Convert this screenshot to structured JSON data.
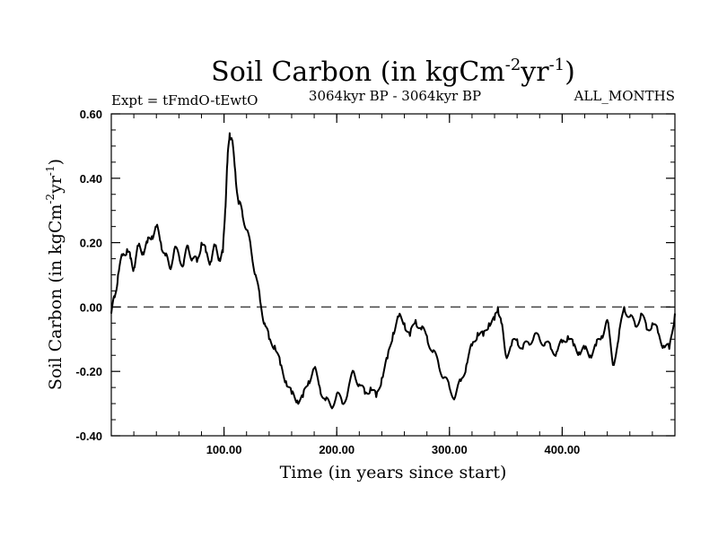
{
  "chart_data": {
    "type": "line",
    "title_main": "Soil Carbon (in kgCm",
    "title_exp1": "-2",
    "title_mid": "yr",
    "title_exp2": "-1",
    "title_close": ")",
    "subtitle_left": "Expt = tFmdO-tEwtO",
    "subtitle_center": "3064kyr BP - 3064kyr BP",
    "subtitle_right": "ALL_MONTHS",
    "xlabel": "Time (in years since start)",
    "ylabel": "Soil Carbon (in kgCm-2yr-1)",
    "ylabel_main": "Soil Carbon (in kgCm",
    "ylabel_exp1": "-2",
    "ylabel_mid": "yr",
    "ylabel_exp2": "-1",
    "ylabel_close": ")",
    "xlim": [
      0,
      500
    ],
    "ylim": [
      -0.4,
      0.6
    ],
    "x_ticks": [
      100,
      200,
      300,
      400
    ],
    "x_tick_labels": [
      "100.00",
      "200.00",
      "300.00",
      "400.00"
    ],
    "y_ticks": [
      -0.4,
      -0.2,
      0.0,
      0.2,
      0.4,
      0.6
    ],
    "y_tick_labels": [
      "-0.40",
      "-0.20",
      "0.00",
      "0.20",
      "0.40",
      "0.60"
    ],
    "reference_line": 0.0,
    "series": [
      {
        "name": "Soil Carbon",
        "x": [
          0,
          3,
          6,
          10,
          14,
          17,
          20,
          24,
          28,
          32,
          36,
          40,
          44,
          48,
          52,
          56,
          60,
          64,
          68,
          72,
          76,
          80,
          84,
          88,
          92,
          96,
          99,
          101,
          103,
          105,
          107,
          110,
          113,
          116,
          120,
          124,
          128,
          132,
          136,
          140,
          145,
          150,
          155,
          160,
          165,
          170,
          175,
          180,
          185,
          190,
          195,
          200,
          205,
          210,
          215,
          220,
          225,
          230,
          235,
          240,
          245,
          250,
          255,
          260,
          265,
          270,
          275,
          280,
          285,
          290,
          295,
          300,
          305,
          310,
          315,
          320,
          325,
          330,
          335,
          340,
          343,
          346,
          350,
          355,
          360,
          365,
          370,
          375,
          380,
          385,
          390,
          395,
          400,
          405,
          410,
          415,
          420,
          425,
          430,
          435,
          440,
          445,
          450,
          455,
          460,
          465,
          470,
          475,
          480,
          485,
          490,
          495,
          500
        ],
        "values": [
          -0.02,
          0.03,
          0.1,
          0.16,
          0.18,
          0.15,
          0.12,
          0.19,
          0.17,
          0.2,
          0.22,
          0.25,
          0.2,
          0.16,
          0.12,
          0.18,
          0.16,
          0.13,
          0.19,
          0.15,
          0.14,
          0.2,
          0.17,
          0.14,
          0.19,
          0.15,
          0.17,
          0.3,
          0.45,
          0.54,
          0.52,
          0.42,
          0.32,
          0.3,
          0.24,
          0.18,
          0.1,
          0.02,
          -0.05,
          -0.1,
          -0.12,
          -0.18,
          -0.23,
          -0.27,
          -0.29,
          -0.28,
          -0.23,
          -0.19,
          -0.25,
          -0.29,
          -0.31,
          -0.27,
          -0.3,
          -0.26,
          -0.2,
          -0.24,
          -0.27,
          -0.25,
          -0.28,
          -0.22,
          -0.16,
          -0.08,
          -0.03,
          -0.05,
          -0.09,
          -0.04,
          -0.07,
          -0.09,
          -0.14,
          -0.17,
          -0.22,
          -0.25,
          -0.28,
          -0.23,
          -0.18,
          -0.12,
          -0.08,
          -0.09,
          -0.05,
          -0.04,
          0.0,
          -0.05,
          -0.15,
          -0.12,
          -0.1,
          -0.13,
          -0.11,
          -0.09,
          -0.1,
          -0.11,
          -0.13,
          -0.14,
          -0.11,
          -0.09,
          -0.12,
          -0.14,
          -0.13,
          -0.15,
          -0.12,
          -0.09,
          -0.04,
          -0.18,
          -0.1,
          0.0,
          -0.03,
          -0.06,
          -0.02,
          -0.07,
          -0.05,
          -0.08,
          -0.12,
          -0.13,
          -0.02
        ]
      }
    ]
  }
}
